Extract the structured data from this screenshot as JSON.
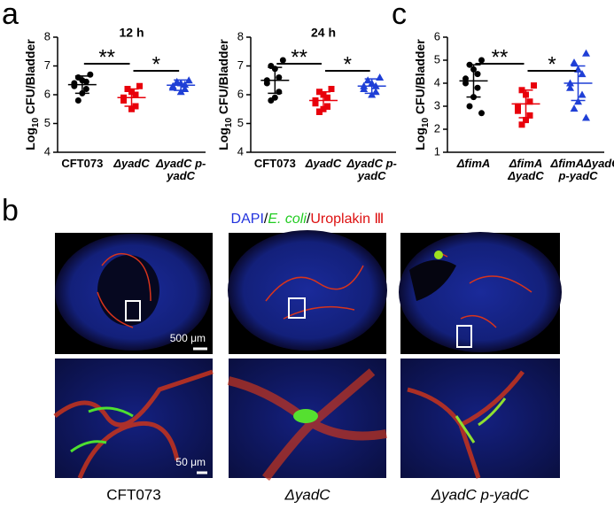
{
  "chart_data": [
    {
      "type": "strip",
      "panel": "a",
      "title": "12 h",
      "ylabel": [
        "Log",
        "10",
        " CFU/Bladder"
      ],
      "categories": [
        "CFT073",
        "ΔyadC",
        "ΔyadC p-yadC"
      ],
      "colors": [
        "#000000",
        "#e8000b",
        "#1f3fd6"
      ],
      "markers": [
        "circle",
        "square",
        "triangle"
      ],
      "points": [
        [
          6.7,
          6.6,
          6.5,
          6.45,
          6.4,
          6.3,
          6.2,
          6.05,
          5.8
        ],
        [
          6.3,
          6.2,
          6.1,
          6.0,
          5.9,
          5.8,
          5.6,
          5.5
        ],
        [
          6.5,
          6.45,
          6.4,
          6.35,
          6.3,
          6.25,
          6.2,
          6.1
        ]
      ],
      "means": [
        6.35,
        5.9,
        6.33
      ],
      "sds": [
        0.3,
        0.3,
        0.18
      ],
      "annotations": [
        "**",
        "*"
      ],
      "ylim": [
        4,
        8
      ],
      "yticks": [
        4,
        5,
        6,
        7,
        8
      ]
    },
    {
      "type": "strip",
      "title": "24 h",
      "ylabel": [
        "Log",
        "10",
        " CFU/Bladder"
      ],
      "categories": [
        "CFT073",
        "ΔyadC",
        "ΔyadC p-yadC"
      ],
      "colors": [
        "#000000",
        "#e8000b",
        "#1f3fd6"
      ],
      "markers": [
        "circle",
        "square",
        "triangle"
      ],
      "points": [
        [
          7.2,
          7.0,
          6.9,
          6.6,
          6.5,
          6.4,
          6.1,
          5.9,
          5.8
        ],
        [
          6.2,
          6.1,
          6.0,
          5.9,
          5.8,
          5.7,
          5.6,
          5.5,
          5.4
        ],
        [
          6.6,
          6.5,
          6.4,
          6.3,
          6.3,
          6.2,
          6.1,
          6.0
        ]
      ],
      "means": [
        6.5,
        5.8,
        6.3
      ],
      "sds": [
        0.45,
        0.3,
        0.25
      ],
      "annotations": [
        "**",
        "*"
      ],
      "ylim": [
        4,
        8
      ],
      "yticks": [
        4,
        5,
        6,
        7,
        8
      ]
    },
    {
      "type": "strip",
      "panel": "c",
      "ylabel": [
        "Log",
        "10",
        " CFU/Bladder"
      ],
      "categories": [
        "ΔfimA",
        "ΔfimA ΔyadC",
        "ΔfimAΔyadC p-yadC"
      ],
      "colors": [
        "#000000",
        "#e8000b",
        "#1f3fd6"
      ],
      "markers": [
        "circle",
        "square",
        "triangle"
      ],
      "points": [
        [
          5.0,
          4.8,
          4.6,
          4.4,
          4.2,
          4.0,
          3.8,
          3.4,
          3.0,
          2.7
        ],
        [
          3.9,
          3.7,
          3.5,
          3.2,
          3.0,
          2.8,
          2.6,
          2.4,
          2.2
        ],
        [
          5.3,
          4.9,
          4.6,
          4.4,
          4.0,
          3.8,
          3.5,
          3.2,
          2.9,
          2.5
        ]
      ],
      "means": [
        4.1,
        3.1,
        4.0
      ],
      "sds": [
        0.7,
        0.6,
        0.75
      ],
      "annotations": [
        "**",
        "*"
      ],
      "ylim": [
        1,
        6
      ],
      "yticks": [
        1,
        2,
        3,
        4,
        5,
        6
      ]
    }
  ],
  "panel_b": {
    "label": "b",
    "legend": [
      {
        "text": "DAPI",
        "color": "#2233dd"
      },
      {
        "text": "/",
        "color": "#000000"
      },
      {
        "text": "E. coli",
        "color": "#22cc22"
      },
      {
        "text": "/",
        "color": "#000000"
      },
      {
        "text": "Uroplakin Ⅲ",
        "color": "#dd1111"
      }
    ],
    "scale_bars": [
      "500 μm",
      "50 μm"
    ],
    "columns": [
      "CFT073",
      "ΔyadC",
      "ΔyadC p-yadC"
    ]
  }
}
